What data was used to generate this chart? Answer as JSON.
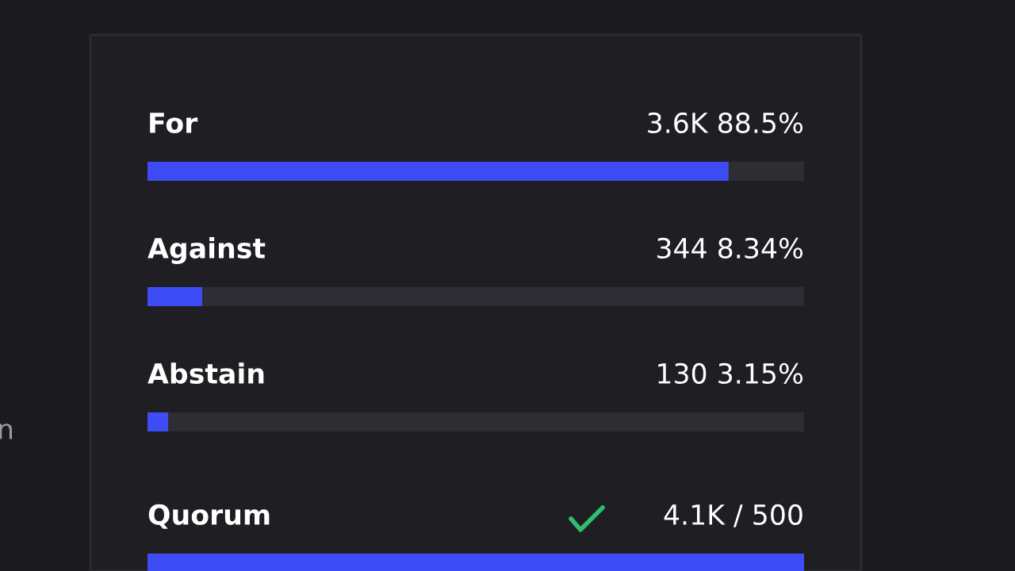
{
  "chart_data": [
    {
      "type": "bar",
      "orientation": "horizontal",
      "categories": [
        "For",
        "Against",
        "Abstain"
      ],
      "values": [
        88.5,
        8.34,
        3.15
      ],
      "color": "#3d4cf5",
      "xlim": [
        0,
        100
      ],
      "value_labels": [
        "3.6K 88.5%",
        "344 8.34%",
        "130 3.15%"
      ],
      "annotations": [
        "n"
      ]
    },
    {
      "type": "other",
      "title": "Quorum",
      "annotations": [
        "4.1K / 500"
      ]
    }
  ]
}
